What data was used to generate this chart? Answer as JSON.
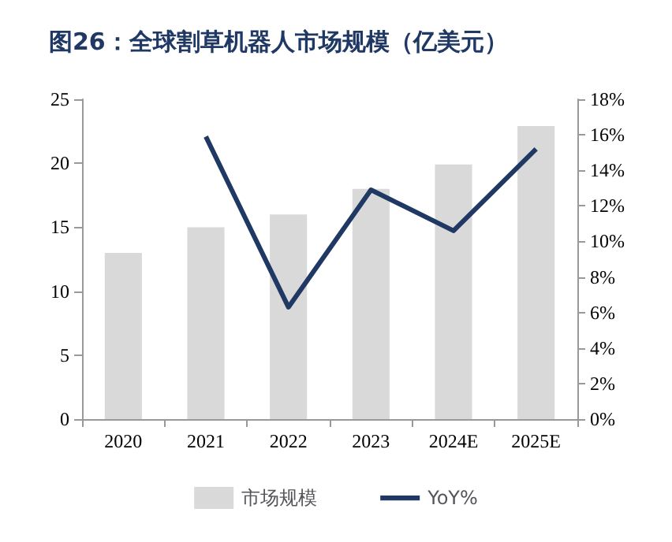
{
  "chart_data": {
    "type": "bar",
    "title": "图26：全球割草机器人市场规模（亿美元）",
    "categories": [
      "2020",
      "2021",
      "2022",
      "2023",
      "2024E",
      "2025E"
    ],
    "series": [
      {
        "name": "市场规模",
        "color": "#d9d9d9",
        "values": [
          13,
          15,
          16,
          18,
          19.9,
          22.9
        ]
      },
      {
        "name": "YoY%",
        "type": "line",
        "axis": "y2",
        "color": "#1f3864",
        "values": [
          null,
          15.9,
          6.3,
          12.9,
          10.6,
          15.2
        ]
      }
    ],
    "ylim": [
      0,
      25
    ],
    "yticks": [
      0,
      5,
      10,
      15,
      20,
      25
    ],
    "y2lim": [
      0,
      18
    ],
    "y2ticks": [
      {
        "value": 0,
        "label": "0%"
      },
      {
        "value": 2,
        "label": "2%"
      },
      {
        "value": 4,
        "label": "4%"
      },
      {
        "value": 6,
        "label": "6%"
      },
      {
        "value": 8,
        "label": "8%"
      },
      {
        "value": 10,
        "label": "10%"
      },
      {
        "value": 12,
        "label": "12%"
      },
      {
        "value": 14,
        "label": "14%"
      },
      {
        "value": 16,
        "label": "16%"
      },
      {
        "value": 18,
        "label": "18%"
      }
    ],
    "grid": false,
    "legend": "bottom",
    "marker": "none"
  }
}
